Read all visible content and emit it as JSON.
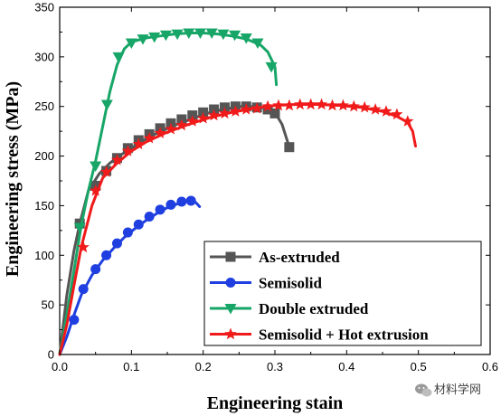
{
  "chart_data": {
    "type": "line",
    "xlabel": "Engineering stain",
    "ylabel": "Engineering stress (MPa)",
    "xlim": [
      0,
      0.6
    ],
    "ylim": [
      0,
      350
    ],
    "xticks": [
      "0.0",
      "0.1",
      "0.2",
      "0.3",
      "0.4",
      "0.5",
      "0.6"
    ],
    "xtick_values": [
      0,
      0.1,
      0.2,
      0.3,
      0.4,
      0.5,
      0.6
    ],
    "yticks": [
      "0",
      "50",
      "100",
      "150",
      "200",
      "250",
      "300",
      "350"
    ],
    "ytick_values": [
      0,
      50,
      100,
      150,
      200,
      250,
      300,
      350
    ],
    "grid": false,
    "legend_position": "bottom-right",
    "series": [
      {
        "name": "As-extruded",
        "color": "#555555",
        "marker": "square",
        "x": [
          0,
          0.01,
          0.02,
          0.028,
          0.04,
          0.055,
          0.07,
          0.085,
          0.1,
          0.115,
          0.13,
          0.145,
          0.16,
          0.175,
          0.19,
          0.205,
          0.22,
          0.235,
          0.25,
          0.265,
          0.28,
          0.29,
          0.3,
          0.31,
          0.32
        ],
        "y": [
          0,
          60,
          105,
          132,
          165,
          182,
          193,
          201,
          208,
          215,
          221,
          226,
          231,
          235,
          239,
          243,
          246,
          248,
          250,
          250,
          249,
          248,
          244,
          232,
          209
        ],
        "markers_x": [
          0.028,
          0.05,
          0.065,
          0.08,
          0.095,
          0.11,
          0.125,
          0.14,
          0.155,
          0.17,
          0.185,
          0.2,
          0.215,
          0.23,
          0.245,
          0.26,
          0.275,
          0.29,
          0.3,
          0.32
        ],
        "markers_y": [
          132,
          170,
          185,
          198,
          208,
          216,
          222,
          228,
          233,
          237,
          241,
          244,
          247,
          249,
          250,
          250,
          249,
          247,
          243,
          209
        ]
      },
      {
        "name": "Semisolid",
        "color": "#1f3fe0",
        "marker": "circle",
        "x": [
          0,
          0.01,
          0.02,
          0.03,
          0.045,
          0.06,
          0.075,
          0.09,
          0.105,
          0.12,
          0.135,
          0.15,
          0.165,
          0.175,
          0.185,
          0.19,
          0.195
        ],
        "y": [
          0,
          18,
          40,
          60,
          80,
          95,
          107,
          118,
          127,
          135,
          142,
          148,
          152,
          154,
          155,
          153,
          149
        ],
        "markers_x": [
          0.02,
          0.033,
          0.05,
          0.065,
          0.08,
          0.095,
          0.11,
          0.125,
          0.14,
          0.155,
          0.17,
          0.183
        ],
        "markers_y": [
          35,
          66,
          86,
          100,
          112,
          123,
          131,
          139,
          146,
          151,
          154,
          155
        ]
      },
      {
        "name": "Double extruded",
        "color": "#17a667",
        "marker": "triangle-down",
        "x": [
          0,
          0.01,
          0.02,
          0.03,
          0.04,
          0.05,
          0.06,
          0.07,
          0.08,
          0.09,
          0.1,
          0.12,
          0.14,
          0.16,
          0.18,
          0.2,
          0.22,
          0.24,
          0.26,
          0.27,
          0.28,
          0.29,
          0.3,
          0.302
        ],
        "y": [
          0,
          40,
          85,
          130,
          165,
          195,
          230,
          265,
          292,
          308,
          315,
          319,
          321,
          323,
          324,
          324,
          323,
          321,
          318,
          315,
          312,
          305,
          290,
          272
        ],
        "markers_x": [
          0.028,
          0.05,
          0.066,
          0.082,
          0.1,
          0.116,
          0.132,
          0.148,
          0.164,
          0.18,
          0.196,
          0.212,
          0.228,
          0.244,
          0.26,
          0.276,
          0.295
        ],
        "markers_y": [
          128,
          190,
          252,
          300,
          314,
          318,
          320,
          322,
          323,
          324,
          324,
          324,
          323,
          322,
          319,
          314,
          290
        ]
      },
      {
        "name": "Semisolid + Hot extrusion",
        "color": "#f01a1a",
        "marker": "star",
        "x": [
          0,
          0.01,
          0.02,
          0.03,
          0.045,
          0.06,
          0.08,
          0.1,
          0.12,
          0.15,
          0.18,
          0.21,
          0.24,
          0.27,
          0.3,
          0.33,
          0.36,
          0.39,
          0.42,
          0.45,
          0.47,
          0.485,
          0.492,
          0.496
        ],
        "y": [
          0,
          30,
          70,
          108,
          150,
          178,
          193,
          205,
          214,
          224,
          232,
          239,
          244,
          248,
          251,
          252,
          252,
          251,
          249,
          245,
          240,
          234,
          225,
          210
        ],
        "markers_x": [
          0.033,
          0.05,
          0.065,
          0.08,
          0.095,
          0.11,
          0.125,
          0.14,
          0.155,
          0.17,
          0.185,
          0.2,
          0.215,
          0.23,
          0.245,
          0.26,
          0.275,
          0.29,
          0.305,
          0.32,
          0.335,
          0.35,
          0.365,
          0.38,
          0.395,
          0.41,
          0.425,
          0.44,
          0.455,
          0.47,
          0.485
        ],
        "markers_y": [
          108,
          165,
          184,
          196,
          205,
          212,
          218,
          223,
          227,
          231,
          235,
          238,
          241,
          243,
          245,
          247,
          248,
          250,
          251,
          251,
          252,
          252,
          252,
          251,
          251,
          250,
          249,
          247,
          245,
          242,
          235
        ]
      }
    ]
  },
  "watermark": {
    "icon": "wechat-icon",
    "text": "材料学网"
  }
}
